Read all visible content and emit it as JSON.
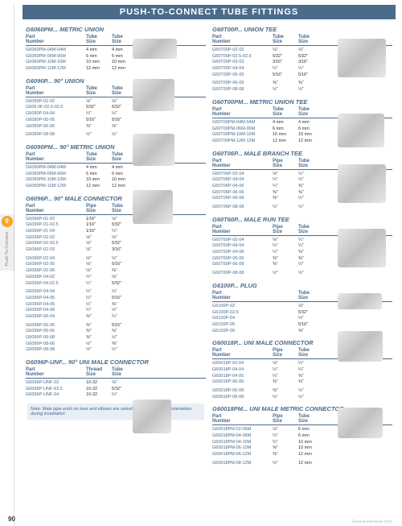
{
  "header": "PUSH-TO-CONNECT TUBE FITTINGS",
  "pageNum": "90",
  "watermark": "GreenLineHose.com",
  "sideTab": {
    "num": "9",
    "label": "Push-To-Connect"
  },
  "colHeaders": {
    "part": "Part\nNumber",
    "c1": "Tube\nSize",
    "c2": "Tube\nSize",
    "pipe": "Pipe\nSize"
  },
  "note": "Note: Male pipe ends on tees and elbows are swivel style to allow easy orientation during installation",
  "left": [
    {
      "title": "G6060PM... METRIC UNION",
      "hdr": [
        "Tube Size",
        "Tube Size"
      ],
      "rows": [
        [
          "G6060PM-04M-04M",
          "4 mm",
          "4 mm"
        ],
        [
          "G6060PM-06M-06M",
          "6 mm",
          "6 mm"
        ],
        [
          "G6060PM-10M-10M",
          "10 mm",
          "10 mm"
        ],
        [
          "G6060PM-12M-12M",
          "12 mm",
          "12 mm"
        ]
      ]
    },
    {
      "title": "G6090P... 90° UNION",
      "hdr": [
        "Tube Size",
        "Tube Size"
      ],
      "rows": [
        [
          "G6090P-02-02",
          "⅛\"",
          "⅛\""
        ],
        [
          "G609 0F-02.5-02.5",
          "5⁄32\"",
          "5⁄32\""
        ],
        [
          "G6090P-04-04",
          "¼\"",
          "¼\""
        ],
        [
          "G6090P-05-05",
          "5⁄16\"",
          "5⁄16\""
        ],
        [
          "G6090P-06-06",
          "⅜\"",
          "⅜\""
        ]
      ],
      "rows2": [
        [
          "G6090P-08-08",
          "½\"",
          "½\""
        ]
      ]
    },
    {
      "title": "G6090PM... 90° METRIC UNION",
      "hdr": [
        "Tube Size",
        "Tube Size"
      ],
      "rows": [
        [
          "G6090PM-04M-04M",
          "4 mm",
          "4 mm"
        ],
        [
          "G6090PM-06M-06M",
          "6 mm",
          "6 mm"
        ],
        [
          "G6090PM-10M-10M",
          "10 mm",
          "10 mm"
        ],
        [
          "G6090PM-12M-12M",
          "12 mm",
          "12 mm"
        ]
      ]
    },
    {
      "title": "G6096P... 90° MALE CONNECTOR",
      "hdr": [
        "Pipe Size",
        "Tube Size"
      ],
      "rows": [
        [
          "G6096P-01-02",
          "1⁄16\"",
          "⅛\""
        ],
        [
          "G6096P-01-02.5",
          "1⁄16\"",
          "5⁄32\""
        ],
        [
          "G6096P-01-04",
          "1⁄16\"",
          "¼\""
        ],
        [
          "G6096P-02-02",
          "⅛\"",
          "⅛\""
        ],
        [
          "G6096P-02-02.5",
          "⅛\"",
          "5⁄32\""
        ],
        [
          "G6096P-02-03",
          "⅛\"",
          "3⁄16\""
        ]
      ],
      "rows2": [
        [
          "G6096P-02-04",
          "⅛\"",
          "¼\""
        ],
        [
          "G6096P-02-05",
          "⅛\"",
          "5⁄16\""
        ],
        [
          "G6096P-02-06",
          "⅛\"",
          "⅜\""
        ],
        [
          "G6096P-04-02",
          "¼\"",
          "⅛\""
        ],
        [
          "G6096P-04-02.5",
          "¼\"",
          "5⁄32\""
        ]
      ],
      "rows3": [
        [
          "G6096P-04-04",
          "¼\"",
          "¼\""
        ],
        [
          "G6096P-04-05",
          "¼\"",
          "5⁄16\""
        ],
        [
          "G6096P-04-06",
          "¼\"",
          "⅜\""
        ],
        [
          "G6096P-04-08",
          "¼\"",
          "½\""
        ],
        [
          "G6096P-06-04",
          "⅜\"",
          "¼\""
        ]
      ],
      "rows4": [
        [
          "G6096P-06-05",
          "⅜\"",
          "5⁄16\""
        ],
        [
          "G6096P-06-06",
          "⅜\"",
          "⅜\""
        ],
        [
          "G6096P-06-08",
          "⅜\"",
          "½\""
        ],
        [
          "G6096P-08-06",
          "½\"",
          "⅜\""
        ],
        [
          "G6096P-08-08",
          "½\"",
          "½\""
        ]
      ]
    },
    {
      "title": "G6096P-UNF... 90° UNI MALE CONNECTOR",
      "hdr": [
        "Thread Size",
        "Tube Size"
      ],
      "rows": [
        [
          "G6096P-UNF-02",
          "10-32",
          "⅛\""
        ],
        [
          "G6096P-UNF-02.5",
          "10-32",
          "5⁄32\""
        ],
        [
          "G6096P-UNF-04",
          "10-32",
          "¼\""
        ]
      ]
    }
  ],
  "right": [
    {
      "title": "G60T00P... UNION TEE",
      "hdr": [
        "Tube Size",
        "Tube Size"
      ],
      "rows": [
        [
          "G60T00P-02-02",
          "⅛\"",
          "⅛\""
        ],
        [
          "G60T00P-02.5-02.5",
          "5⁄32\"",
          "5⁄32\""
        ],
        [
          "G60T00P-03-03",
          "3⁄16\"",
          "3⁄16\""
        ],
        [
          "G60T00P-04-04",
          "¼\"",
          "¼\""
        ],
        [
          "G60T00P-05-05",
          "5⁄16\"",
          "5⁄16\""
        ]
      ],
      "rows2": [
        [
          "G60T00P-06-06",
          "⅜\"",
          "⅜\""
        ],
        [
          "G60T00P-08-08",
          "½\"",
          "½\""
        ]
      ]
    },
    {
      "title": "G60T00PM... METRIC UNION TEE",
      "hdr": [
        "Tube Size",
        "Tube Size"
      ],
      "rows": [
        [
          "G60T00PM-04M-04M",
          "4 mm",
          "4 mm"
        ],
        [
          "G60T00PM-06M-06M",
          "6 mm",
          "6 mm"
        ],
        [
          "G60T00PM-10M-10M",
          "10 mm",
          "10 mm"
        ],
        [
          "G60T00PM-12M-12M",
          "12 mm",
          "12 mm"
        ]
      ]
    },
    {
      "title": "G60T06P... MALE BRANCH TEE",
      "hdr": [
        "Pipe Size",
        "Tube Size"
      ],
      "rows": [
        [
          "G60T06P-02-04",
          "⅛\"",
          "¼\""
        ],
        [
          "G60T06P-04-04",
          "¼\"",
          "¼\""
        ],
        [
          "G60T06P-04-06",
          "¼\"",
          "⅜\""
        ],
        [
          "G60T06P-06-06",
          "⅜\"",
          "⅜\""
        ],
        [
          "G60T06P-06-08",
          "⅜\"",
          "½\""
        ]
      ],
      "rows2": [
        [
          "G60T06P-08-08",
          "½\"",
          "½\""
        ]
      ]
    },
    {
      "title": "G60T60P... MALE RUN TEE",
      "hdr": [
        "Pipe Size",
        "Tube Size"
      ],
      "rows": [
        [
          "G60T60P-02-04",
          "⅛\"",
          "¼\""
        ],
        [
          "G60T60P-04-04",
          "¼\"",
          "¼\""
        ],
        [
          "G60T60P-04-06",
          "¼\"",
          "⅜\""
        ],
        [
          "G60T60P-06-06",
          "⅜\"",
          "⅜\""
        ],
        [
          "G60T60P-06-08",
          "⅜\"",
          "½\""
        ]
      ],
      "rows2": [
        [
          "G60T60P-08-08",
          "½\"",
          "½\""
        ]
      ]
    },
    {
      "title": "G6100P... PLUG",
      "hdr": [
        "",
        "Tube Size"
      ],
      "rows": [
        [
          "G6100P-02",
          "",
          "⅛\""
        ],
        [
          "G6100P-02.5",
          "",
          "5⁄32\""
        ],
        [
          "G6100P-04",
          "",
          "¼\""
        ],
        [
          "G6100P-05",
          "",
          "5⁄16\""
        ],
        [
          "G6100P-06",
          "",
          "⅜\""
        ]
      ]
    },
    {
      "title": "G60018P... UNI MALE CONNECTOR",
      "hdr": [
        "Pipe Size",
        "Tube Size"
      ],
      "rows": [
        [
          "G60018P-02-04",
          "⅛\"",
          "¼\""
        ],
        [
          "G60018P-04-04",
          "¼\"",
          "¼\""
        ],
        [
          "G60018P-04-06",
          "¼\"",
          "⅜\""
        ],
        [
          "G60018P-06-06",
          "⅜\"",
          "⅜\""
        ]
      ],
      "rows2": [
        [
          "G60018P-06-08",
          "⅜\"",
          "½\""
        ],
        [
          "G60018P-08-08",
          "½\"",
          "½\""
        ]
      ]
    },
    {
      "title": "G60018PM... UNI MALE METRIC CONNECTOR",
      "hdr": [
        "Pipe Size",
        "Tube Size"
      ],
      "rows": [
        [
          "G60018PM-02-06M",
          "⅛\"",
          "6 mm"
        ],
        [
          "G60018PM-04-06M",
          "¼\"",
          "6 mm"
        ],
        [
          "G60018PM-04-10M",
          "¼\"",
          "10 mm"
        ],
        [
          "G60018PM-06-10M",
          "⅜\"",
          "10 mm"
        ],
        [
          "G60018PM-06-12M",
          "⅜\"",
          "12 mm"
        ]
      ],
      "rows2": [
        [
          "G60018PM-08-12M",
          "½\"",
          "12 mm"
        ]
      ]
    }
  ]
}
